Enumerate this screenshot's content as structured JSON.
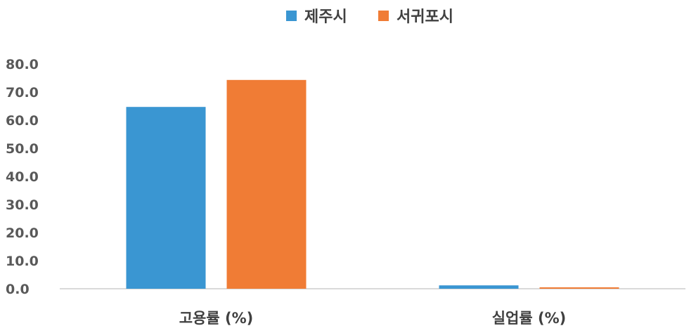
{
  "chart_data": {
    "type": "bar",
    "categories": [
      "고용률 (%)",
      "실업률 (%)"
    ],
    "series": [
      {
        "name": "제주시",
        "values": [
          64.7,
          1.2
        ],
        "color": "#3A96D2"
      },
      {
        "name": "서귀포시",
        "values": [
          74.3,
          0.5
        ],
        "color": "#F07C35"
      }
    ],
    "ylim": [
      0,
      80
    ],
    "yticks": [
      "0.0",
      "10.0",
      "20.0",
      "30.0",
      "40.0",
      "50.0",
      "60.0",
      "70.0",
      "80.0"
    ],
    "grid": false,
    "legend_position": "top-center"
  }
}
